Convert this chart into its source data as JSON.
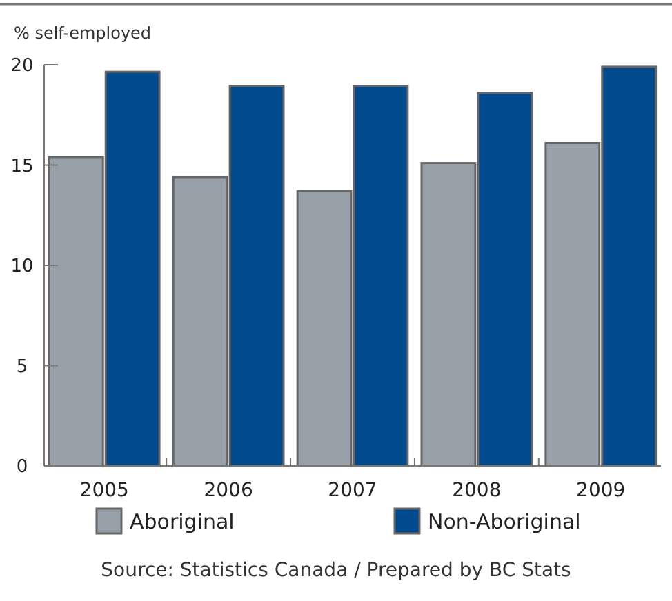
{
  "chart_data": {
    "type": "bar",
    "ylabel": "% self-employed",
    "categories": [
      "2005",
      "2006",
      "2007",
      "2008",
      "2009"
    ],
    "series": [
      {
        "name": "Aboriginal",
        "color": "#98a1aa",
        "values": [
          15.4,
          14.4,
          13.7,
          15.1,
          16.1
        ]
      },
      {
        "name": "Non-Aboriginal",
        "color": "#004a8d",
        "values": [
          19.65,
          18.95,
          18.95,
          18.6,
          19.9
        ]
      }
    ],
    "ylim": [
      0,
      20
    ],
    "yticks": [
      0,
      5,
      10,
      15,
      20
    ],
    "grid": false,
    "legend": "bottom",
    "annotations": [
      "Source: Statistics Canada / Prepared by BC Stats"
    ]
  }
}
